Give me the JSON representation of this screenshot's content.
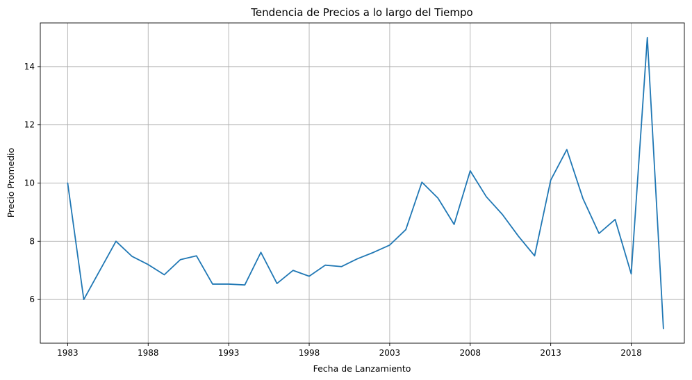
{
  "chart_data": {
    "type": "line",
    "title": "Tendencia de Precios a lo largo del Tiempo",
    "xlabel": "Fecha de Lanzamiento",
    "ylabel": "Precio Promedio",
    "x_ticks": [
      1983,
      1988,
      1993,
      1998,
      2003,
      2008,
      2013,
      2018
    ],
    "y_ticks": [
      6,
      8,
      10,
      12,
      14
    ],
    "xlim": [
      1981.3,
      2021.3
    ],
    "ylim": [
      4.5,
      15.5
    ],
    "grid": true,
    "series": [
      {
        "color": "#1f77b4",
        "x": [
          1983,
          1984,
          1985,
          1986,
          1987,
          1988,
          1989,
          1990,
          1991,
          1992,
          1993,
          1994,
          1995,
          1996,
          1997,
          1998,
          1999,
          2000,
          2001,
          2002,
          2003,
          2004,
          2005,
          2006,
          2007,
          2008,
          2009,
          2010,
          2011,
          2012,
          2013,
          2014,
          2015,
          2016,
          2017,
          2018,
          2019,
          2020
        ],
        "y": [
          10.0,
          6.0,
          7.0,
          8.0,
          7.48,
          7.2,
          6.85,
          7.37,
          7.5,
          6.53,
          6.53,
          6.5,
          7.62,
          6.55,
          7.0,
          6.8,
          7.18,
          7.13,
          7.4,
          7.62,
          7.87,
          8.4,
          10.03,
          9.48,
          8.58,
          10.42,
          9.53,
          8.92,
          8.17,
          7.5,
          10.1,
          11.15,
          9.47,
          8.27,
          8.75,
          6.88,
          15.0,
          5.0
        ]
      }
    ]
  }
}
